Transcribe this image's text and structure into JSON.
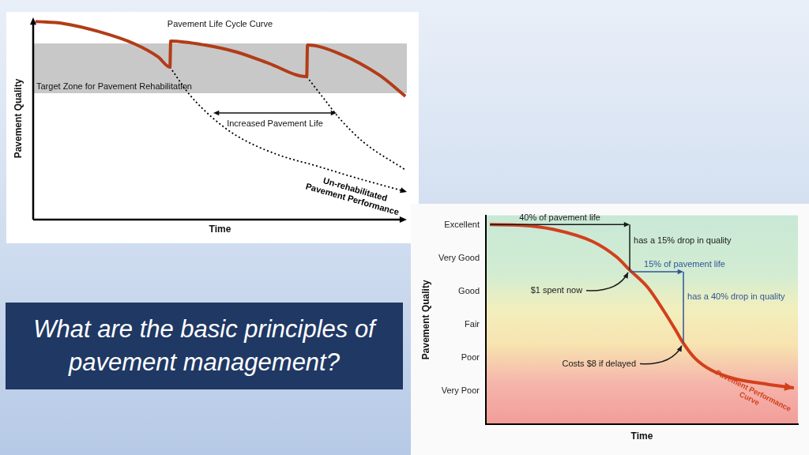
{
  "slide_title": "What are the basic principles of pavement management?",
  "chart_data": [
    {
      "type": "line",
      "title": "Pavement Life Cycle Curve",
      "x_label": "Time",
      "y_label": "Pavement Quality",
      "xlim": [
        0,
        100
      ],
      "ylim": [
        0,
        100
      ],
      "tick_labels": false,
      "grid": false,
      "bands": [
        {
          "label": "Target Zone for Pavement Rehabilitation",
          "values": [
            62.5,
            87.1
          ]
        }
      ],
      "annotations": [
        {
          "text": "Increased Pavement Life",
          "x": [
            48.2,
            81.2
          ],
          "y": 52.7
        }
      ],
      "series": [
        {
          "color": "#b23c17",
          "line_style": "solid",
          "x": [
            0.6,
            8,
            17.5,
            27,
            33.4,
            36.6,
            36.8,
            46,
            54.5,
            63,
            73.2,
            73.4,
            82,
            92.6,
            99.6
          ],
          "values": [
            98,
            97,
            93,
            87,
            80.5,
            75.4,
            88.3,
            86.3,
            82.8,
            77.3,
            70.7,
            86.3,
            82,
            71.5,
            61
          ]
        },
        {
          "name": "Un-rehabilitated Pavement Performance",
          "color": "#000000",
          "line_style": "dotted",
          "marker": "arrow",
          "x": [
            36.6,
            41.9,
            48.2,
            54.5,
            65,
            75.7,
            86.3,
            100
          ],
          "values": [
            75.4,
            61.7,
            50,
            41.4,
            32.4,
            26.6,
            20.7,
            13.7
          ]
        },
        {
          "color": "#000000",
          "line_style": "dotted",
          "x": [
            73.2,
            77.8,
            82,
            88.4,
            99.6
          ],
          "values": [
            70.7,
            59.8,
            50,
            38.3,
            24.6
          ]
        }
      ]
    },
    {
      "type": "line",
      "x_label": "Time",
      "y_label": "Pavement Quality",
      "xlim": [
        0,
        100
      ],
      "ylim": [
        0,
        6.3
      ],
      "yticks": [
        {
          "value": 1,
          "label": "Very Poor"
        },
        {
          "value": 2,
          "label": "Poor"
        },
        {
          "value": 3,
          "label": "Fair"
        },
        {
          "value": 4,
          "label": "Good"
        },
        {
          "value": 5,
          "label": "Very Good"
        },
        {
          "value": 6,
          "label": "Excellent"
        }
      ],
      "tick_labels": "y",
      "grid": false,
      "annotations": [
        {
          "text": "40% of pavement life",
          "x": [
            1.3,
            46.1
          ],
          "y": 6.02
        },
        {
          "text": "has a 15% drop in quality",
          "x": 46.1,
          "y": [
            6.02,
            4.65
          ]
        },
        {
          "text": "15% of pavement life",
          "x": [
            46.1,
            63.3
          ],
          "y": 4.6,
          "color": "#2f5597"
        },
        {
          "text": "has a 40% drop in quality",
          "x": 63.3,
          "y": [
            4.6,
            2.44
          ],
          "color": "#2f5597"
        },
        {
          "text": "$1 spent now",
          "x": 46.1,
          "y": 4.65
        },
        {
          "text": "Costs $8 if delayed",
          "x": 63.3,
          "y": 2.44
        }
      ],
      "series": [
        {
          "name": "Pavement Performance Curve",
          "color": "#d2401c",
          "line_style": "solid",
          "marker": "arrow",
          "x": [
            1.3,
            11.4,
            21.5,
            34.2,
            41.8,
            46.1,
            51.9,
            57,
            60.8,
            63.3,
            67.1,
            72.2,
            79.7,
            89.9,
            98.7
          ],
          "values": [
            6.02,
            6.0,
            5.88,
            5.51,
            5.05,
            4.65,
            4.12,
            3.42,
            2.84,
            2.44,
            1.98,
            1.63,
            1.37,
            1.21,
            1.09
          ]
        }
      ]
    }
  ]
}
